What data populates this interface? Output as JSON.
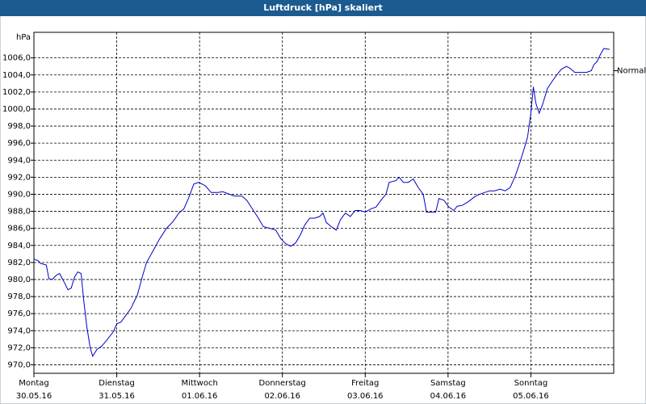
{
  "chart_data": {
    "type": "line",
    "title": "Luftdruck [hPa] skaliert",
    "y_label": "hPa",
    "color": "#0000c8",
    "grid": true,
    "xlim": [
      0,
      7
    ],
    "xticks": [
      {
        "value": 0,
        "label": "Montag",
        "sublabel": "30.05.16"
      },
      {
        "value": 1,
        "label": "Dienstag",
        "sublabel": "31.05.16"
      },
      {
        "value": 2,
        "label": "Mittwoch",
        "sublabel": "01.06.16"
      },
      {
        "value": 3,
        "label": "Donnerstag",
        "sublabel": "02.06.16"
      },
      {
        "value": 4,
        "label": "Freitag",
        "sublabel": "03.06.16"
      },
      {
        "value": 5,
        "label": "Samstag",
        "sublabel": "04.06.16"
      },
      {
        "value": 6,
        "label": "Sonntag",
        "sublabel": "05.06.16"
      }
    ],
    "ylim": [
      969,
      1009
    ],
    "yticks": [
      {
        "value": 970,
        "label": "970,0"
      },
      {
        "value": 972,
        "label": "972,0"
      },
      {
        "value": 974,
        "label": "974,0"
      },
      {
        "value": 976,
        "label": "976,0"
      },
      {
        "value": 978,
        "label": "978,0"
      },
      {
        "value": 980,
        "label": "980,0"
      },
      {
        "value": 982,
        "label": "982,0"
      },
      {
        "value": 984,
        "label": "984,0"
      },
      {
        "value": 986,
        "label": "986,0"
      },
      {
        "value": 988,
        "label": "988,0"
      },
      {
        "value": 990,
        "label": "990,0"
      },
      {
        "value": 992,
        "label": "992,0"
      },
      {
        "value": 994,
        "label": "994,0"
      },
      {
        "value": 996,
        "label": "996,0"
      },
      {
        "value": 998,
        "label": "998,0"
      },
      {
        "value": 1000,
        "label": "1000,0"
      },
      {
        "value": 1002,
        "label": "1002,0"
      },
      {
        "value": 1004,
        "label": "1004,0"
      },
      {
        "value": 1006,
        "label": "1006,0"
      }
    ],
    "annotation": {
      "text": "Normal",
      "value": 1004.5
    },
    "x": [
      0,
      0.05,
      0.08,
      0.15,
      0.18,
      0.22,
      0.27,
      0.31,
      0.37,
      0.41,
      0.45,
      0.49,
      0.53,
      0.57,
      0.6,
      0.64,
      0.68,
      0.71,
      0.76,
      0.82,
      0.88,
      0.96,
      1.0,
      1.05,
      1.11,
      1.17,
      1.25,
      1.31,
      1.36,
      1.44,
      1.52,
      1.6,
      1.68,
      1.75,
      1.81,
      1.87,
      1.93,
      1.99,
      2.07,
      2.14,
      2.22,
      2.28,
      2.36,
      2.42,
      2.51,
      2.57,
      2.65,
      2.71,
      2.77,
      2.85,
      2.92,
      2.98,
      3.04,
      3.1,
      3.16,
      3.22,
      3.27,
      3.33,
      3.39,
      3.45,
      3.49,
      3.53,
      3.59,
      3.65,
      3.7,
      3.76,
      3.82,
      3.88,
      3.94,
      4.0,
      4.07,
      4.13,
      4.19,
      4.25,
      4.29,
      4.37,
      4.41,
      4.46,
      4.52,
      4.58,
      4.64,
      4.7,
      4.74,
      4.8,
      4.85,
      4.89,
      4.95,
      5.01,
      5.07,
      5.11,
      5.17,
      5.24,
      5.32,
      5.38,
      5.44,
      5.5,
      5.56,
      5.63,
      5.69,
      5.75,
      5.81,
      5.87,
      5.93,
      5.96,
      6.0,
      6.03,
      6.06,
      6.1,
      6.14,
      6.2,
      6.26,
      6.32,
      6.37,
      6.43,
      6.47,
      6.53,
      6.59,
      6.67,
      6.73,
      6.76,
      6.8,
      6.84,
      6.88,
      6.95
    ],
    "values": [
      982.4,
      982.2,
      981.9,
      981.7,
      980.1,
      980.0,
      980.5,
      980.7,
      979.6,
      978.8,
      979.0,
      980.3,
      980.9,
      980.7,
      977.7,
      974.4,
      972.0,
      971.0,
      971.8,
      972.2,
      972.9,
      973.9,
      974.8,
      975.0,
      975.8,
      976.6,
      978.2,
      980.4,
      982.0,
      983.4,
      984.8,
      986.0,
      986.8,
      987.8,
      988.3,
      989.6,
      991.2,
      991.4,
      991.0,
      990.2,
      990.2,
      990.3,
      990.0,
      989.8,
      989.8,
      989.3,
      988.1,
      987.2,
      986.2,
      986.0,
      985.8,
      984.8,
      984.2,
      983.9,
      984.3,
      985.3,
      986.4,
      987.2,
      987.2,
      987.4,
      987.8,
      986.7,
      986.2,
      985.8,
      987.0,
      987.8,
      987.4,
      988.1,
      988.1,
      987.9,
      988.3,
      988.5,
      989.3,
      990.0,
      991.4,
      991.6,
      992.0,
      991.4,
      991.4,
      991.8,
      990.8,
      990.0,
      987.9,
      987.9,
      987.9,
      989.5,
      989.3,
      988.5,
      988.1,
      988.6,
      988.7,
      989.1,
      989.7,
      990.0,
      990.2,
      990.4,
      990.4,
      990.6,
      990.4,
      990.8,
      992.1,
      993.8,
      995.7,
      996.7,
      999.5,
      1002.6,
      1000.7,
      999.5,
      1000.5,
      1002.4,
      1003.3,
      1004.1,
      1004.7,
      1005.0,
      1004.8,
      1004.3,
      1004.3,
      1004.3,
      1004.5,
      1005.2,
      1005.6,
      1006.4,
      1007.1,
      1007.0
    ]
  }
}
